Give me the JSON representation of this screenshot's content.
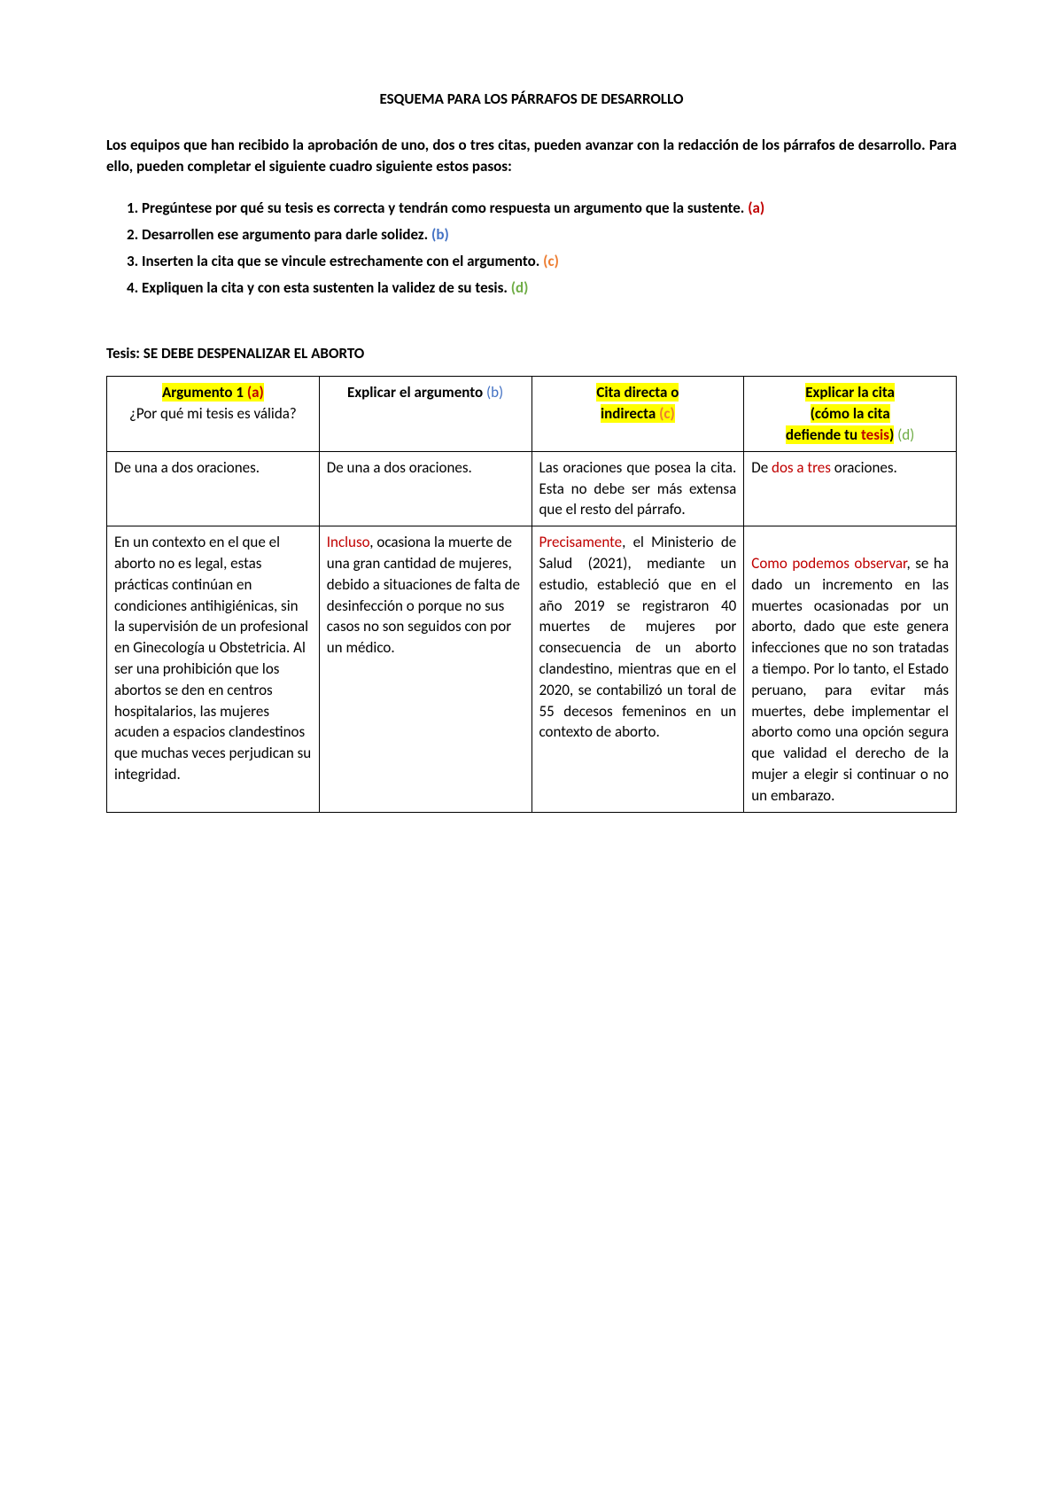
{
  "title": "ESQUEMA PARA LOS PÁRRAFOS DE DESARROLLO",
  "intro": "Los equipos que han recibido la aprobación de uno, dos o tres citas, pueden avanzar con la redacción de los párrafos de desarrollo. Para ello, pueden completar el siguiente cuadro siguiente estos pasos:",
  "steps": {
    "s1_pre": "Pregúntese por qué su tesis es correcta y tendrán como respuesta un argumento que la sustente. ",
    "s1_letter": "(a)",
    "s2_pre": "Desarrollen ese argumento para darle solidez. ",
    "s2_letter": "(b)",
    "s3_pre": "Inserten la cita que se vincule estrechamente con el argumento. ",
    "s3_letter": "(c)",
    "s4_pre": "Expliquen la cita y con esta sustenten la validez de su tesis. ",
    "s4_letter": "(d)"
  },
  "tesis_label": "Tesis: SE DEBE DESPENALIZAR EL ABORTO",
  "headers": {
    "h1_hl": "Argumento 1 ",
    "h1_letter": "(a)",
    "h1_sub": "¿Por qué mi tesis es válida?",
    "h2_main": "Explicar el argumento ",
    "h2_letter": "(b)",
    "h3_hl_a": "Cita directa o",
    "h3_hl_b": "indirecta ",
    "h3_letter": "(c)",
    "h4_hl_a": "Explicar la cita",
    "h4_hl_b": "(cómo la cita",
    "h4_hl_c": "defiende tu ",
    "h4_tesis": "tesis",
    "h4_paren": ")",
    "h4_letter": " (d)"
  },
  "row1": {
    "c1": "De una a dos oraciones.",
    "c2": "De una a dos oraciones.",
    "c3": "Las oraciones que posea la cita. Esta no debe ser más extensa que el resto del párrafo.",
    "c4_pre": "De ",
    "c4_mid": "dos a tres",
    "c4_post": " oraciones."
  },
  "row2": {
    "c1": "En un contexto en el que el aborto no es legal, estas prácticas continúan en condiciones antihigiénicas, sin la supervisión de un profesional en Ginecología u Obstetricia. Al ser una prohibición que los abortos se den en centros hospitalarios, las mujeres acuden a espacios clandestinos que muchas veces perjudican su integridad.",
    "c2_red": "Incluso",
    "c2_rest": ", ocasiona la muerte de una gran cantidad de mujeres, debido a situaciones de falta de desinfección o porque no sus casos no son seguidos con por un médico.",
    "c3_red": "Precisamente",
    "c3_rest": ", el Ministerio de Salud (2021), mediante un estudio, estableció que en el año 2019 se registraron 40 muertes de mujeres por consecuencia de un aborto clandestino, mientras que en el 2020, se contabilizó un toral de 55 decesos femeninos en un contexto de aborto.",
    "c4_red": "Como podemos observar",
    "c4_rest": ", se ha dado un incremento en las muertes ocasionadas por un aborto, dado que este genera infecciones que no son tratadas a tiempo. Por lo tanto, el Estado peruano, para evitar más muertes, debe implementar el aborto como una opción segura que validad el derecho de la mujer a elegir si continuar o no un embarazo."
  }
}
